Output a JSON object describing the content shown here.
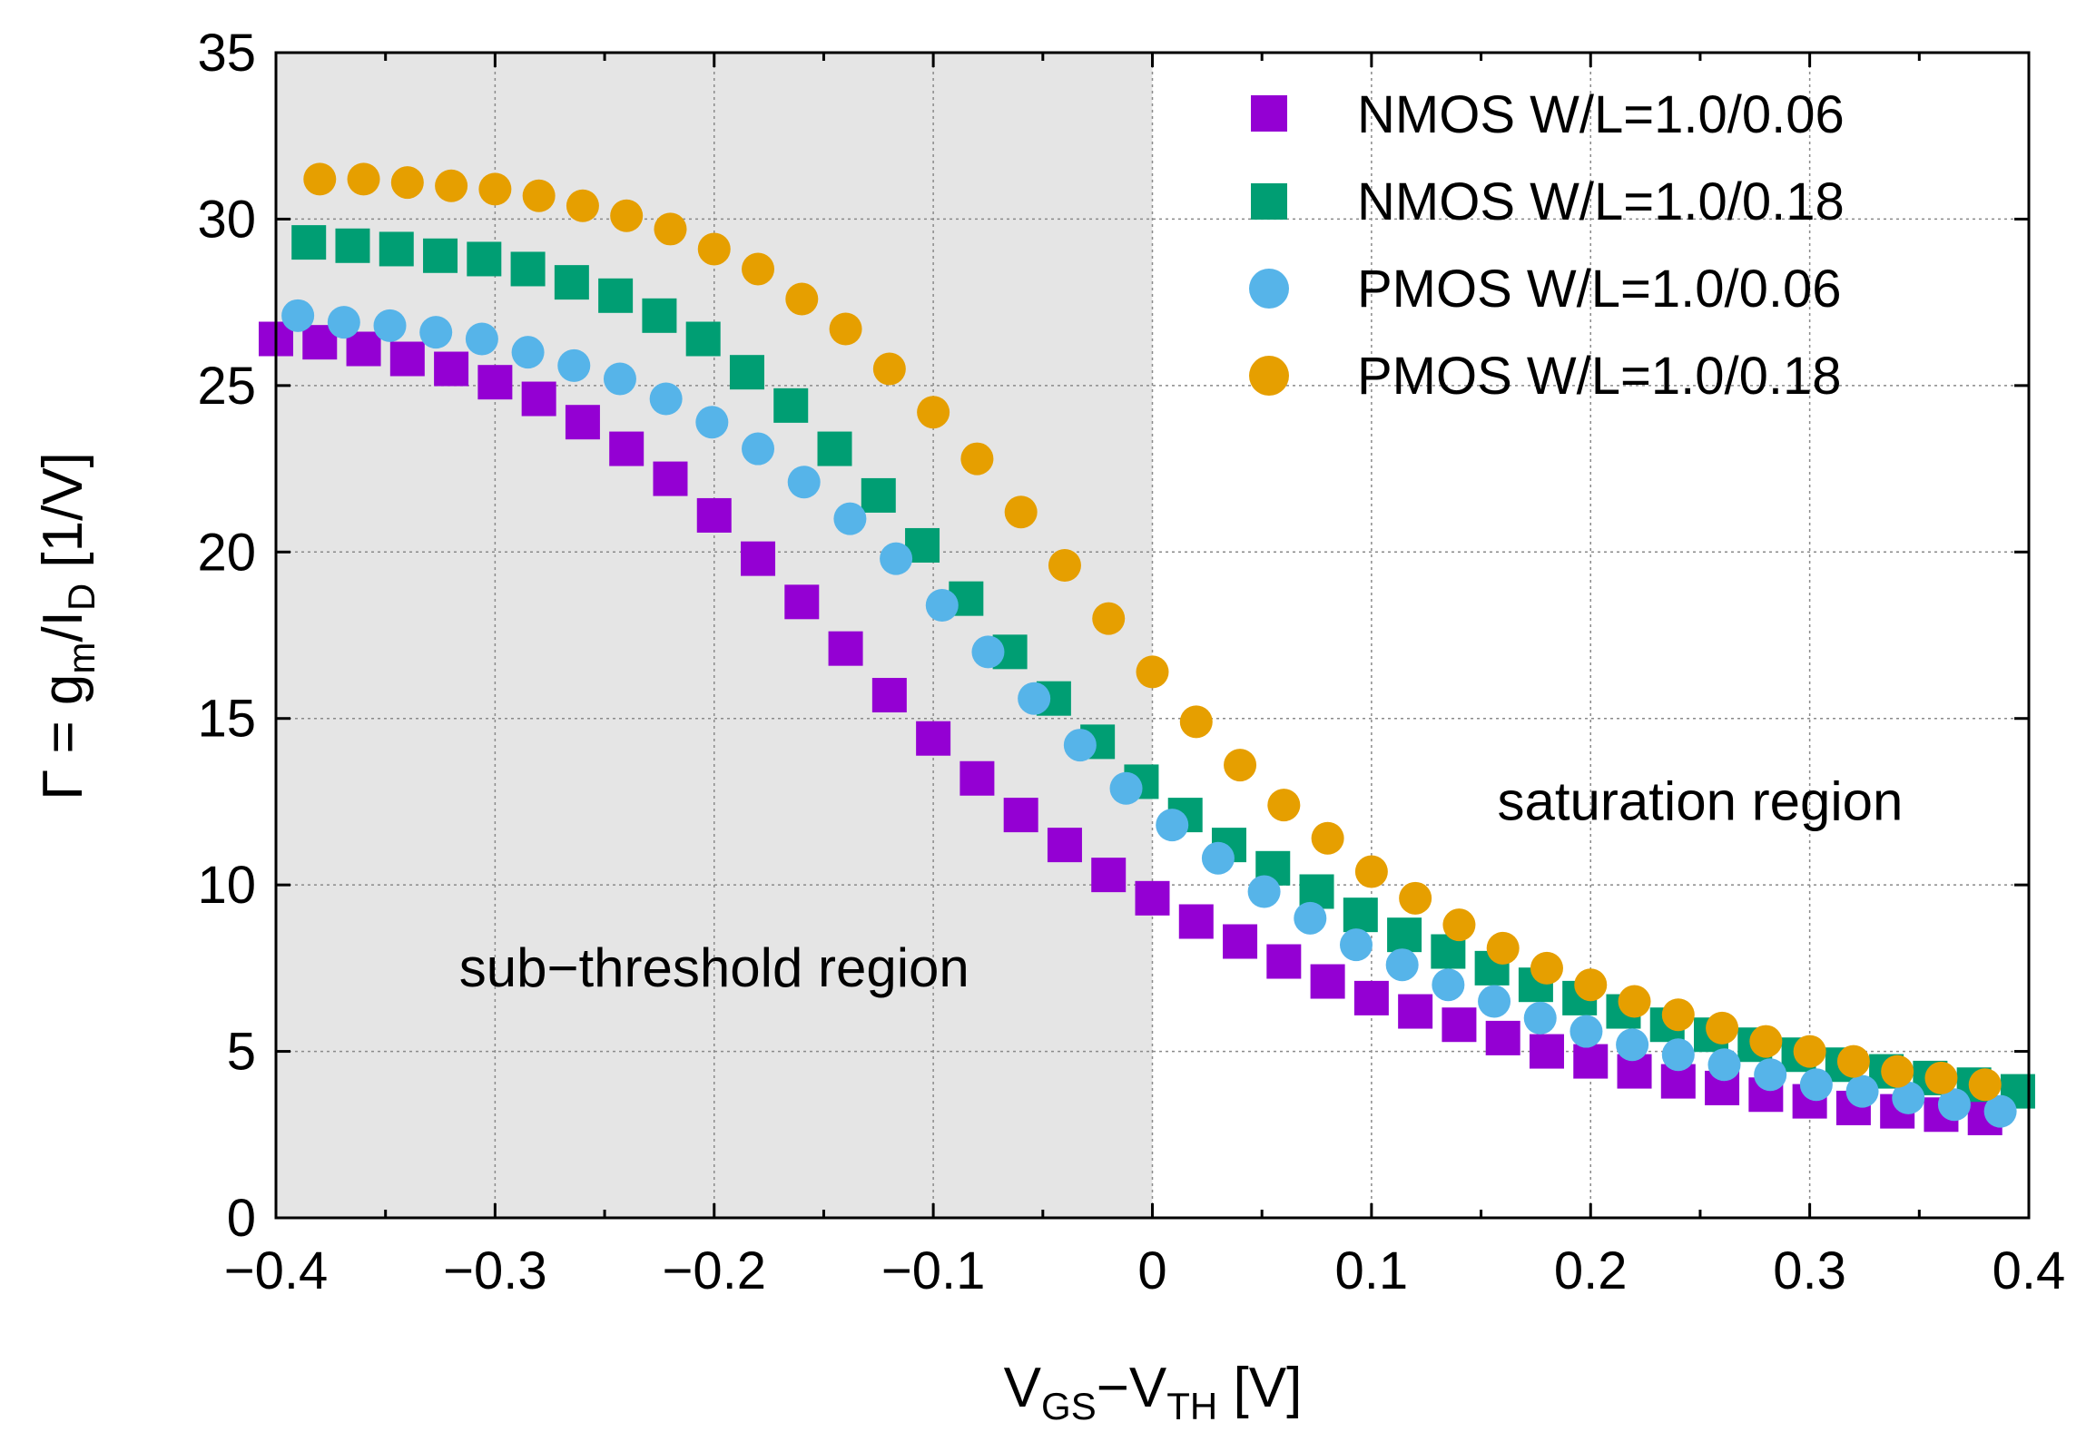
{
  "chart_data": {
    "type": "scatter",
    "xlabel": {
      "main": "V",
      "sub1": "GS",
      "mid": "−V",
      "sub2": "TH",
      "unit": " [V]"
    },
    "ylabel": {
      "pre": "Γ = g",
      "sub1": "m",
      "mid": "/I",
      "sub2": "D",
      "unit": " [1/V]"
    },
    "xlim": [
      -0.4,
      0.4
    ],
    "ylim": [
      0,
      35
    ],
    "xticks": [
      -0.4,
      -0.3,
      -0.2,
      -0.1,
      0,
      0.1,
      0.2,
      0.3,
      0.4
    ],
    "xtick_labels": [
      "−0.4",
      "−0.3",
      "−0.2",
      "−0.1",
      "0",
      "0.1",
      "0.2",
      "0.3",
      "0.4"
    ],
    "yticks": [
      0,
      5,
      10,
      15,
      20,
      25,
      30,
      35
    ],
    "ytick_labels": [
      "0",
      "5",
      "10",
      "15",
      "20",
      "25",
      "30",
      "35"
    ],
    "grid": true,
    "legend_position": "top-right",
    "shaded_region": {
      "x_from": -0.4,
      "x_to": 0,
      "color": "#e5e5e5"
    },
    "annotations": [
      {
        "text": "sub−threshold region",
        "x": -0.2,
        "y": 7.5
      },
      {
        "text": "saturation region",
        "x": 0.25,
        "y": 12.5
      }
    ],
    "series": [
      {
        "name": "NMOS W/L=1.0/0.06",
        "marker": "square",
        "color": "#9400d3",
        "x": [
          -0.4,
          -0.38,
          -0.36,
          -0.34,
          -0.32,
          -0.3,
          -0.28,
          -0.26,
          -0.24,
          -0.22,
          -0.2,
          -0.18,
          -0.16,
          -0.14,
          -0.12,
          -0.1,
          -0.08,
          -0.06,
          -0.04,
          -0.02,
          0.0,
          0.02,
          0.04,
          0.06,
          0.08,
          0.1,
          0.12,
          0.14,
          0.16,
          0.18,
          0.2,
          0.22,
          0.24,
          0.26,
          0.28,
          0.3,
          0.32,
          0.34,
          0.36,
          0.38
        ],
        "y": [
          26.4,
          26.3,
          26.1,
          25.8,
          25.5,
          25.1,
          24.6,
          23.9,
          23.1,
          22.2,
          21.1,
          19.8,
          18.5,
          17.1,
          15.7,
          14.4,
          13.2,
          12.1,
          11.2,
          10.3,
          9.6,
          8.9,
          8.3,
          7.7,
          7.1,
          6.6,
          6.2,
          5.8,
          5.4,
          5.0,
          4.7,
          4.4,
          4.1,
          3.9,
          3.7,
          3.5,
          3.3,
          3.2,
          3.1,
          3.0
        ]
      },
      {
        "name": "NMOS W/L=1.0/0.18",
        "marker": "square",
        "color": "#009e73",
        "x": [
          -0.385,
          -0.365,
          -0.345,
          -0.325,
          -0.305,
          -0.285,
          -0.265,
          -0.245,
          -0.225,
          -0.205,
          -0.185,
          -0.165,
          -0.145,
          -0.125,
          -0.105,
          -0.085,
          -0.065,
          -0.045,
          -0.025,
          -0.005,
          0.015,
          0.035,
          0.055,
          0.075,
          0.095,
          0.115,
          0.135,
          0.155,
          0.175,
          0.195,
          0.215,
          0.235,
          0.255,
          0.275,
          0.295,
          0.315,
          0.335,
          0.355,
          0.375,
          0.395
        ],
        "y": [
          29.3,
          29.2,
          29.1,
          28.9,
          28.8,
          28.5,
          28.1,
          27.7,
          27.1,
          26.4,
          25.4,
          24.4,
          23.1,
          21.7,
          20.2,
          18.6,
          17.0,
          15.6,
          14.3,
          13.1,
          12.1,
          11.2,
          10.5,
          9.8,
          9.1,
          8.5,
          8.0,
          7.5,
          7.0,
          6.6,
          6.2,
          5.8,
          5.5,
          5.2,
          4.9,
          4.6,
          4.4,
          4.2,
          4.0,
          3.8
        ]
      },
      {
        "name": "PMOS W/L=1.0/0.06",
        "marker": "circle",
        "color": "#56b4e9",
        "x": [
          -0.39,
          -0.369,
          -0.348,
          -0.327,
          -0.306,
          -0.285,
          -0.264,
          -0.243,
          -0.222,
          -0.201,
          -0.18,
          -0.159,
          -0.138,
          -0.117,
          -0.096,
          -0.075,
          -0.054,
          -0.033,
          -0.012,
          0.009,
          0.03,
          0.051,
          0.072,
          0.093,
          0.114,
          0.135,
          0.156,
          0.177,
          0.198,
          0.219,
          0.24,
          0.261,
          0.282,
          0.303,
          0.324,
          0.345,
          0.366,
          0.387
        ],
        "y": [
          27.1,
          26.9,
          26.8,
          26.6,
          26.4,
          26.0,
          25.6,
          25.2,
          24.6,
          23.9,
          23.1,
          22.1,
          21.0,
          19.8,
          18.4,
          17.0,
          15.6,
          14.2,
          12.9,
          11.8,
          10.8,
          9.8,
          9.0,
          8.2,
          7.6,
          7.0,
          6.5,
          6.0,
          5.6,
          5.2,
          4.9,
          4.6,
          4.3,
          4.0,
          3.8,
          3.6,
          3.4,
          3.2
        ]
      },
      {
        "name": "PMOS W/L=1.0/0.18",
        "marker": "circle",
        "color": "#e69f00",
        "x": [
          -0.38,
          -0.36,
          -0.34,
          -0.32,
          -0.3,
          -0.28,
          -0.26,
          -0.24,
          -0.22,
          -0.2,
          -0.18,
          -0.16,
          -0.14,
          -0.12,
          -0.1,
          -0.08,
          -0.06,
          -0.04,
          -0.02,
          0.0,
          0.02,
          0.04,
          0.06,
          0.08,
          0.1,
          0.12,
          0.14,
          0.16,
          0.18,
          0.2,
          0.22,
          0.24,
          0.26,
          0.28,
          0.3,
          0.32,
          0.34,
          0.36,
          0.38
        ],
        "y": [
          31.2,
          31.2,
          31.1,
          31.0,
          30.9,
          30.7,
          30.4,
          30.1,
          29.7,
          29.1,
          28.5,
          27.6,
          26.7,
          25.5,
          24.2,
          22.8,
          21.2,
          19.6,
          18.0,
          16.4,
          14.9,
          13.6,
          12.4,
          11.4,
          10.4,
          9.6,
          8.8,
          8.1,
          7.5,
          7.0,
          6.5,
          6.1,
          5.7,
          5.3,
          5.0,
          4.7,
          4.4,
          4.2,
          4.0
        ]
      }
    ]
  }
}
